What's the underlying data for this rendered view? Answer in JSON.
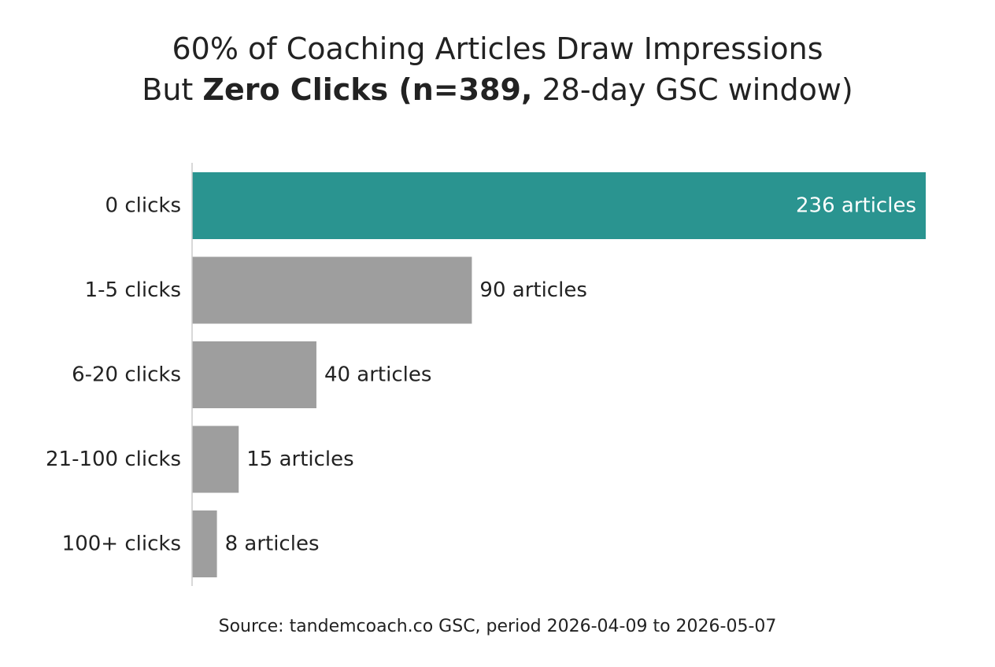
{
  "chart_data": {
    "type": "bar",
    "orientation": "horizontal",
    "title": "60% of Coaching Articles Draw Impressions But Zero Clicks (n=389, 28-day GSC window)",
    "title_parts": {
      "line1": "60% of Coaching Articles Draw Impressions",
      "line2_prefix": "But ",
      "line2_bold": "Zero Clicks (n=389,",
      "line2_suffix": " 28-day GSC window)"
    },
    "categories": [
      "0 clicks",
      "1-5 clicks",
      "6-20 clicks",
      "21-100 clicks",
      "100+ clicks"
    ],
    "values": [
      236,
      90,
      40,
      15,
      8
    ],
    "value_labels": [
      "236 articles",
      "90 articles",
      "40 articles",
      "15 articles",
      "8 articles"
    ],
    "highlight_index": 0,
    "colors": {
      "highlight": "#2a9490",
      "default": "#9e9e9e",
      "axis": "#cccccc",
      "text": "#222222",
      "label_on_bar": "#ffffff"
    },
    "xlim": [
      0,
      236
    ],
    "grid": false,
    "legend": "none",
    "source": "Source: tandemcoach.co GSC, period 2026-04-09 to 2026-05-07"
  }
}
